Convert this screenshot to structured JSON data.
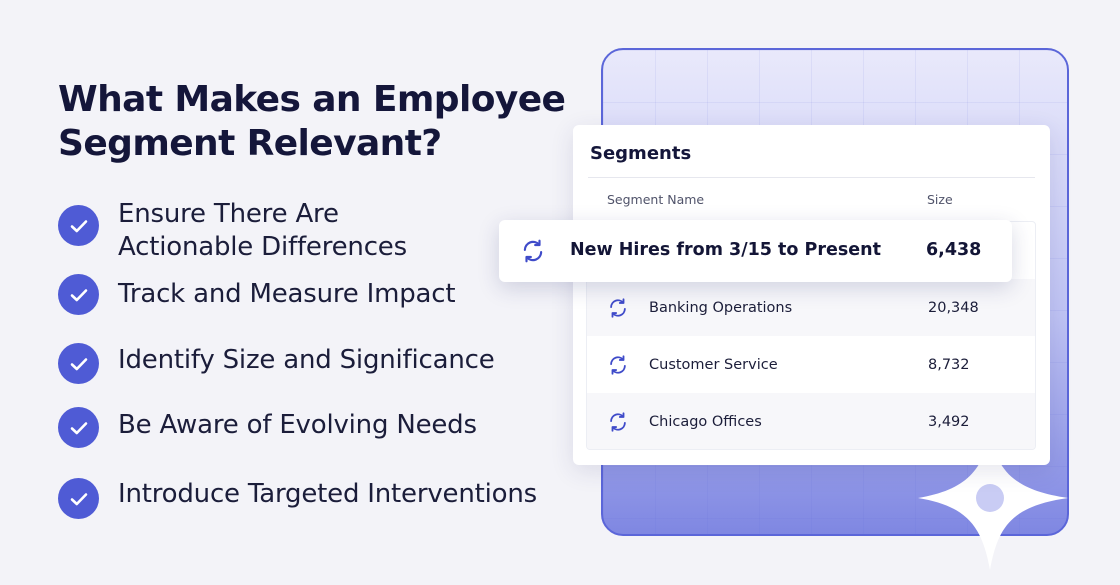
{
  "headline": "What Makes an Employee Segment Relevant?",
  "checklist": [
    "Ensure There Are Actionable Differences",
    "Track and Measure Impact",
    "Identify Size and Significance",
    "Be Aware of Evolving Needs",
    "Introduce Targeted Interventions"
  ],
  "segments_card": {
    "title": "Segments",
    "columns": {
      "name": "Segment Name",
      "size": "Size"
    },
    "highlighted_row": {
      "name": "New Hires from 3/15 to Present",
      "size": "6,438",
      "icon": "refresh-icon"
    },
    "rows": [
      {
        "name": "Banking Operations",
        "size": "20,348",
        "icon": "refresh-icon"
      },
      {
        "name": "Customer Service",
        "size": "8,732",
        "icon": "refresh-icon"
      },
      {
        "name": "Chicago Offices",
        "size": "3,492",
        "icon": "refresh-icon"
      }
    ]
  },
  "colors": {
    "accent": "#4f5bd5",
    "heading": "#14163a",
    "background": "#f3f3f8",
    "panel_border": "#5b66d9"
  }
}
